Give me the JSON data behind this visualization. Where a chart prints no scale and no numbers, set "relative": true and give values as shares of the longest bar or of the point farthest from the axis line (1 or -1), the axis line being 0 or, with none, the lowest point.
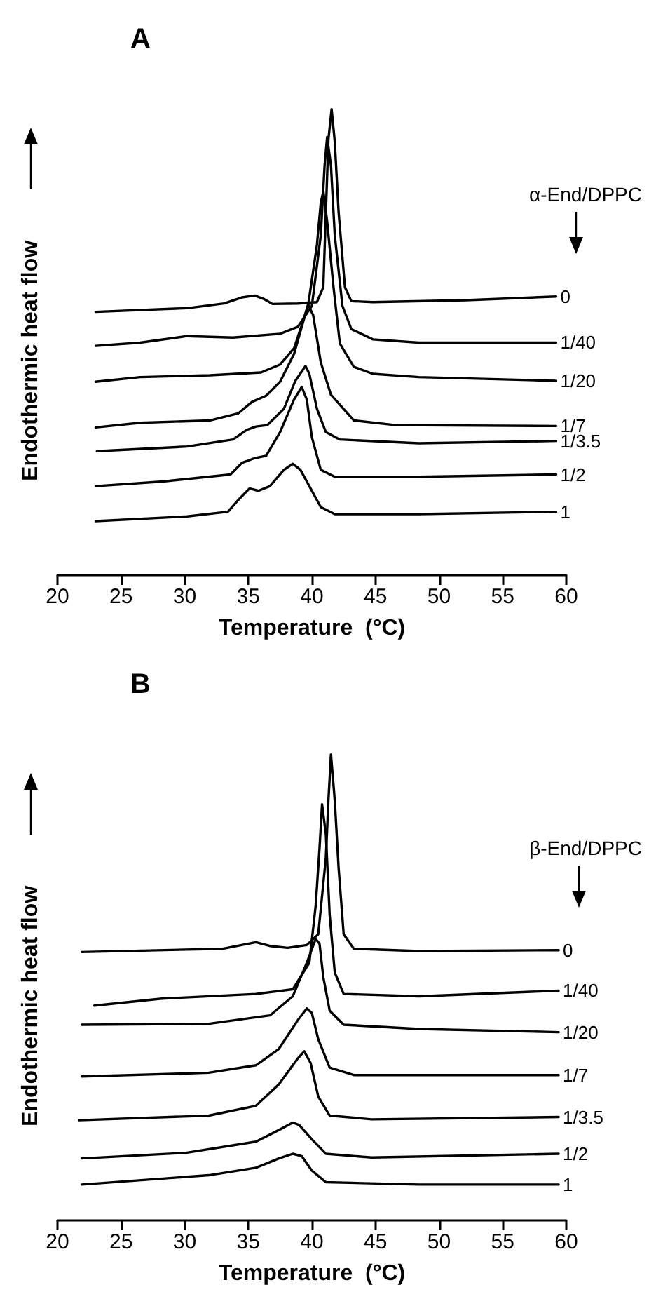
{
  "chart_data": [
    {
      "type": "line",
      "title": "A",
      "xlabel": "Temperature  (°C)",
      "ylabel": "Endothermic heat flow",
      "legend_title": "α-End/DPPC",
      "relative": true,
      "legend": false,
      "marker": "none",
      "line_style": "solid",
      "xlim": [
        20,
        60
      ],
      "xticks": [
        20,
        25,
        30,
        35,
        40,
        45,
        50,
        55,
        60
      ],
      "series": [
        {
          "name": "0",
          "color": "#000000",
          "x": [
            23.0,
            30.2,
            33.1,
            34.5,
            35.5,
            36.2,
            36.9,
            38.9,
            40.4,
            40.9,
            41.1,
            41.3,
            41.55,
            41.8,
            42.1,
            42.6,
            43.1,
            44.8,
            52.1,
            59.2
          ],
          "values": [
            0.565,
            0.573,
            0.583,
            0.596,
            0.6,
            0.593,
            0.582,
            0.583,
            0.586,
            0.618,
            0.779,
            0.935,
            1.0,
            0.93,
            0.779,
            0.618,
            0.588,
            0.586,
            0.59,
            0.598
          ]
        },
        {
          "name": "1/40",
          "color": "#000000",
          "x": [
            23.0,
            26.5,
            30.2,
            33.8,
            37.5,
            38.9,
            40.0,
            40.7,
            41.0,
            41.2,
            41.5,
            41.8,
            42.4,
            43.1,
            44.8,
            48.4,
            59.2
          ],
          "values": [
            0.492,
            0.499,
            0.513,
            0.51,
            0.518,
            0.533,
            0.578,
            0.729,
            0.879,
            0.94,
            0.879,
            0.729,
            0.578,
            0.528,
            0.506,
            0.499,
            0.499
          ]
        },
        {
          "name": "1/20",
          "color": "#000000",
          "x": [
            23.0,
            26.5,
            32.0,
            36.0,
            37.5,
            38.6,
            39.7,
            40.4,
            40.7,
            40.9,
            41.2,
            41.7,
            42.2,
            43.3,
            44.8,
            48.4,
            59.2
          ],
          "values": [
            0.415,
            0.425,
            0.429,
            0.435,
            0.452,
            0.487,
            0.578,
            0.709,
            0.799,
            0.824,
            0.759,
            0.618,
            0.497,
            0.447,
            0.432,
            0.425,
            0.417
          ]
        },
        {
          "name": "1/7",
          "color": "#000000",
          "x": [
            23.0,
            26.5,
            32.0,
            34.2,
            35.3,
            36.4,
            37.5,
            38.6,
            39.7,
            40.1,
            40.7,
            41.5,
            43.3,
            46.6,
            59.2
          ],
          "values": [
            0.317,
            0.327,
            0.332,
            0.347,
            0.372,
            0.385,
            0.415,
            0.475,
            0.581,
            0.558,
            0.457,
            0.387,
            0.332,
            0.322,
            0.32
          ]
        },
        {
          "name": "1/3.5",
          "color": "#000000",
          "x": [
            23.1,
            30.2,
            33.8,
            34.9,
            35.6,
            36.5,
            37.8,
            38.7,
            39.5,
            39.8,
            40.4,
            41.1,
            42.2,
            48.4,
            59.2
          ],
          "values": [
            0.266,
            0.276,
            0.291,
            0.312,
            0.319,
            0.322,
            0.357,
            0.417,
            0.449,
            0.432,
            0.357,
            0.307,
            0.291,
            0.283,
            0.288
          ]
        },
        {
          "name": "1/2",
          "color": "#000000",
          "x": [
            23.0,
            28.3,
            33.6,
            34.5,
            35.5,
            36.4,
            37.5,
            38.6,
            39.2,
            39.6,
            40.0,
            40.7,
            41.8,
            48.4,
            59.2
          ],
          "values": [
            0.191,
            0.201,
            0.216,
            0.241,
            0.251,
            0.256,
            0.307,
            0.377,
            0.404,
            0.377,
            0.296,
            0.226,
            0.211,
            0.211,
            0.216
          ]
        },
        {
          "name": "1",
          "color": "#000000",
          "x": [
            23.0,
            30.2,
            33.4,
            34.2,
            35.1,
            35.8,
            36.7,
            37.8,
            38.5,
            39.1,
            39.8,
            40.7,
            41.8,
            48.4,
            59.2
          ],
          "values": [
            0.116,
            0.126,
            0.136,
            0.161,
            0.186,
            0.181,
            0.191,
            0.226,
            0.239,
            0.226,
            0.191,
            0.146,
            0.131,
            0.131,
            0.136
          ]
        }
      ]
    },
    {
      "type": "line",
      "title": "B",
      "xlabel": "Temperature  (°C)",
      "ylabel": "Endothermic heat flow",
      "legend_title": "β-End/DPPC",
      "relative": true,
      "legend": false,
      "marker": "none",
      "line_style": "solid",
      "xlim": [
        20,
        60
      ],
      "xticks": [
        20,
        25,
        30,
        35,
        40,
        45,
        50,
        55,
        60
      ],
      "series": [
        {
          "name": "0",
          "color": "#000000",
          "x": [
            21.9,
            33.0,
            35.6,
            36.7,
            38.1,
            39.6,
            40.5,
            41.1,
            41.3,
            41.5,
            41.8,
            42.1,
            42.5,
            43.3,
            48.4,
            59.4
          ],
          "values": [
            0.576,
            0.583,
            0.597,
            0.589,
            0.585,
            0.591,
            0.614,
            0.778,
            0.901,
            1.0,
            0.901,
            0.757,
            0.614,
            0.583,
            0.578,
            0.58
          ]
        },
        {
          "name": "1/40",
          "color": "#000000",
          "x": [
            22.9,
            28.2,
            35.6,
            38.5,
            39.8,
            40.3,
            40.6,
            40.8,
            41.1,
            41.4,
            41.8,
            42.5,
            48.4,
            59.4
          ],
          "values": [
            0.461,
            0.476,
            0.486,
            0.496,
            0.553,
            0.676,
            0.798,
            0.893,
            0.829,
            0.655,
            0.532,
            0.486,
            0.481,
            0.493
          ]
        },
        {
          "name": "1/20",
          "color": "#000000",
          "x": [
            21.9,
            31.9,
            36.7,
            38.5,
            39.6,
            40.3,
            40.6,
            40.9,
            41.4,
            42.5,
            48.4,
            59.4
          ],
          "values": [
            0.42,
            0.422,
            0.44,
            0.481,
            0.553,
            0.604,
            0.594,
            0.522,
            0.45,
            0.42,
            0.411,
            0.404
          ]
        },
        {
          "name": "1/7",
          "color": "#000000",
          "x": [
            21.9,
            31.9,
            35.6,
            37.4,
            38.9,
            39.6,
            40.0,
            40.5,
            41.4,
            43.3,
            59.4
          ],
          "values": [
            0.309,
            0.317,
            0.333,
            0.368,
            0.43,
            0.455,
            0.445,
            0.389,
            0.328,
            0.312,
            0.312
          ]
        },
        {
          "name": "1/3.5",
          "color": "#000000",
          "x": [
            21.7,
            31.9,
            35.6,
            37.4,
            38.9,
            39.4,
            39.9,
            40.5,
            41.4,
            44.7,
            59.4
          ],
          "values": [
            0.215,
            0.225,
            0.246,
            0.292,
            0.348,
            0.363,
            0.338,
            0.266,
            0.225,
            0.217,
            0.222
          ]
        },
        {
          "name": "1/2",
          "color": "#000000",
          "x": [
            21.9,
            30.1,
            35.6,
            37.4,
            38.5,
            39.0,
            40.0,
            41.1,
            44.7,
            59.4
          ],
          "values": [
            0.133,
            0.145,
            0.169,
            0.194,
            0.21,
            0.205,
            0.174,
            0.143,
            0.135,
            0.143
          ]
        },
        {
          "name": "1",
          "color": "#000000",
          "x": [
            21.9,
            31.9,
            35.6,
            37.4,
            38.5,
            39.2,
            40.0,
            41.1,
            48.4,
            59.4
          ],
          "values": [
            0.077,
            0.097,
            0.113,
            0.133,
            0.143,
            0.138,
            0.107,
            0.082,
            0.077,
            0.077
          ]
        }
      ]
    }
  ]
}
